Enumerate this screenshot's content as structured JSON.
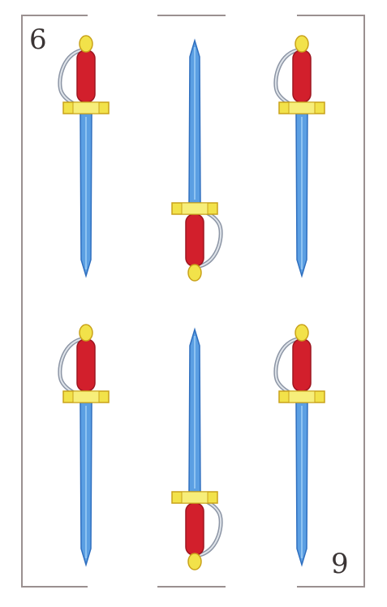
{
  "card": {
    "suit": "swords",
    "rank_top": "6",
    "rank_bottom": "9",
    "sword_count": 6,
    "swords": [
      {
        "name": "sword-top-left",
        "orientation": "hilt-up"
      },
      {
        "name": "sword-top-center",
        "orientation": "hilt-down"
      },
      {
        "name": "sword-top-right",
        "orientation": "hilt-up"
      },
      {
        "name": "sword-bottom-left",
        "orientation": "hilt-up"
      },
      {
        "name": "sword-bottom-center",
        "orientation": "hilt-down"
      },
      {
        "name": "sword-bottom-right",
        "orientation": "hilt-up"
      }
    ],
    "colors": {
      "blade": "#5b9fe3",
      "blade_edge": "#2f6fbf",
      "grip": "#d21f2c",
      "guard": "#f2e24a",
      "guard_edge": "#c9a21a",
      "knuckle_bow": "#8c95a5",
      "frame": "#9a9090"
    }
  }
}
